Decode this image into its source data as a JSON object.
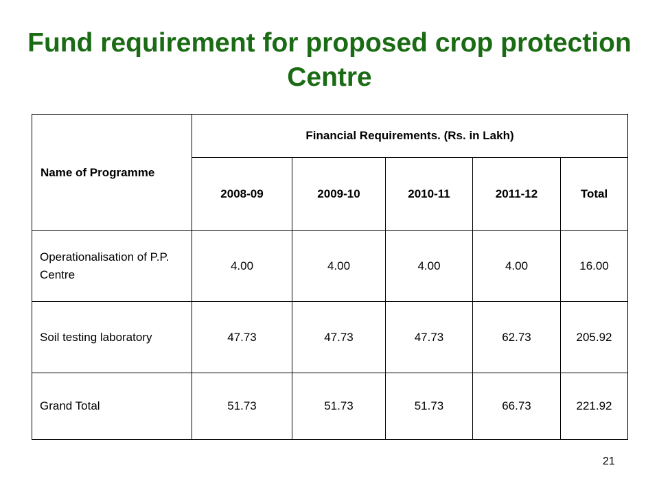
{
  "slide": {
    "title": "Fund requirement for proposed crop protection Centre",
    "page_number": "21"
  },
  "table": {
    "name_header": "Name of Programme",
    "group_header": "Financial Requirements. (Rs. in Lakh)",
    "year_headers": [
      "2008-09",
      "2009-10",
      "2010-11",
      "2011-12",
      "Total"
    ],
    "rows": [
      {
        "name": "Operationalisation of P.P. Centre",
        "values": [
          "4.00",
          "4.00",
          "4.00",
          "4.00",
          "16.00"
        ]
      },
      {
        "name": "Soil testing laboratory",
        "values": [
          "47.73",
          "47.73",
          "47.73",
          "62.73",
          "205.92"
        ]
      },
      {
        "name": "Grand Total",
        "values": [
          "51.73",
          "51.73",
          "51.73",
          "66.73",
          "221.92"
        ]
      }
    ]
  },
  "colors": {
    "title": "#1a6b14",
    "text": "#000000",
    "border": "#000000",
    "background": "#ffffff"
  }
}
